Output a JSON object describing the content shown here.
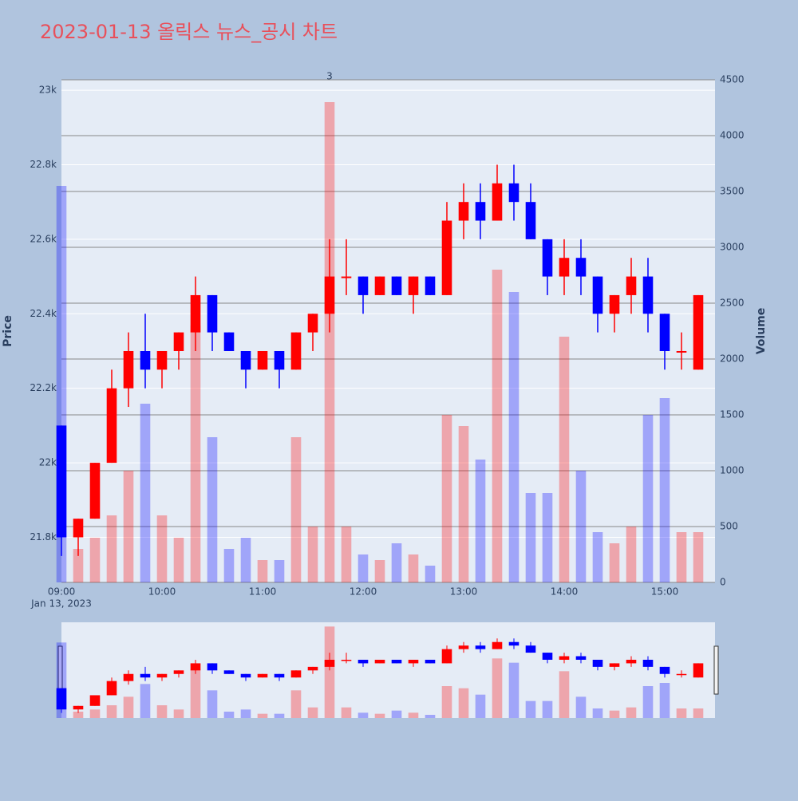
{
  "chart_data": {
    "type": "candlestick",
    "title": "2023-01-13 올릭스 뉴스_공시 차트",
    "ylabel": "Price",
    "y2label": "Volume",
    "x_date_label": "Jan 13, 2023",
    "x": [
      "09:00",
      "09:10",
      "09:20",
      "09:30",
      "09:40",
      "09:50",
      "10:00",
      "10:10",
      "10:20",
      "10:30",
      "10:40",
      "10:50",
      "11:00",
      "11:10",
      "11:20",
      "11:30",
      "11:40",
      "11:50",
      "12:00",
      "12:10",
      "12:20",
      "12:30",
      "12:40",
      "12:50",
      "13:00",
      "13:10",
      "13:20",
      "13:30",
      "13:40",
      "13:50",
      "14:00",
      "14:10",
      "14:20",
      "14:30",
      "14:40",
      "14:50",
      "15:00",
      "15:10",
      "15:20"
    ],
    "open": [
      22100,
      21800,
      21850,
      22000,
      22200,
      22300,
      22250,
      22300,
      22350,
      22450,
      22350,
      22300,
      22250,
      22300,
      22250,
      22350,
      22400,
      22500,
      22500,
      22450,
      22500,
      22450,
      22500,
      22450,
      22650,
      22700,
      22650,
      22750,
      22700,
      22600,
      22500,
      22550,
      22500,
      22400,
      22450,
      22500,
      22400,
      22300,
      22250
    ],
    "high": [
      22100,
      21850,
      22000,
      22250,
      22350,
      22400,
      22300,
      22350,
      22500,
      22450,
      22350,
      22300,
      22300,
      22300,
      22350,
      22400,
      22600,
      22600,
      22500,
      22500,
      22500,
      22500,
      22500,
      22700,
      22750,
      22750,
      22800,
      22800,
      22750,
      22600,
      22600,
      22600,
      22500,
      22450,
      22550,
      22550,
      22400,
      22350,
      22450
    ],
    "low": [
      21750,
      21750,
      21850,
      22000,
      22150,
      22200,
      22200,
      22250,
      22300,
      22300,
      22300,
      22200,
      22250,
      22200,
      22250,
      22300,
      22350,
      22450,
      22400,
      22450,
      22450,
      22400,
      22450,
      22450,
      22600,
      22600,
      22650,
      22650,
      22600,
      22450,
      22450,
      22450,
      22350,
      22350,
      22400,
      22350,
      22250,
      22250,
      22250
    ],
    "close": [
      21800,
      21850,
      22000,
      22200,
      22300,
      22250,
      22300,
      22350,
      22450,
      22350,
      22300,
      22250,
      22300,
      22250,
      22350,
      22400,
      22500,
      22500,
      22450,
      22500,
      22450,
      22500,
      22450,
      22650,
      22700,
      22650,
      22750,
      22700,
      22600,
      22500,
      22550,
      22500,
      22400,
      22450,
      22500,
      22400,
      22300,
      22300,
      22450
    ],
    "volume": [
      3550,
      300,
      400,
      600,
      1000,
      1600,
      600,
      400,
      2300,
      1300,
      300,
      400,
      200,
      200,
      1300,
      500,
      4300,
      500,
      250,
      200,
      350,
      250,
      150,
      1500,
      1400,
      1100,
      2800,
      2600,
      800,
      800,
      2200,
      1000,
      450,
      350,
      500,
      1500,
      1650,
      450,
      450
    ],
    "increasing_color": "#ff0000",
    "decreasing_color": "#0000ff",
    "annotation": {
      "x": "11:40",
      "text": "3"
    },
    "xlim": [
      "09:00",
      "15:30"
    ],
    "xticks": [
      "09:00",
      "10:00",
      "11:00",
      "12:00",
      "13:00",
      "14:00",
      "15:00"
    ],
    "ylim": [
      21679,
      23028
    ],
    "yticks": [
      {
        "value": 21800,
        "label": "21.8k"
      },
      {
        "value": 22000,
        "label": "22k"
      },
      {
        "value": 22200,
        "label": "22.2k"
      },
      {
        "value": 22400,
        "label": "22.4k"
      },
      {
        "value": 22600,
        "label": "22.6k"
      },
      {
        "value": 22800,
        "label": "22.8k"
      },
      {
        "value": 23000,
        "label": "23k"
      }
    ],
    "y2lim": [
      0,
      4500
    ],
    "y2ticks": [
      0,
      500,
      1000,
      1500,
      2000,
      2500,
      3000,
      3500,
      4000,
      4500
    ],
    "grid": true,
    "rangeslider": true
  }
}
